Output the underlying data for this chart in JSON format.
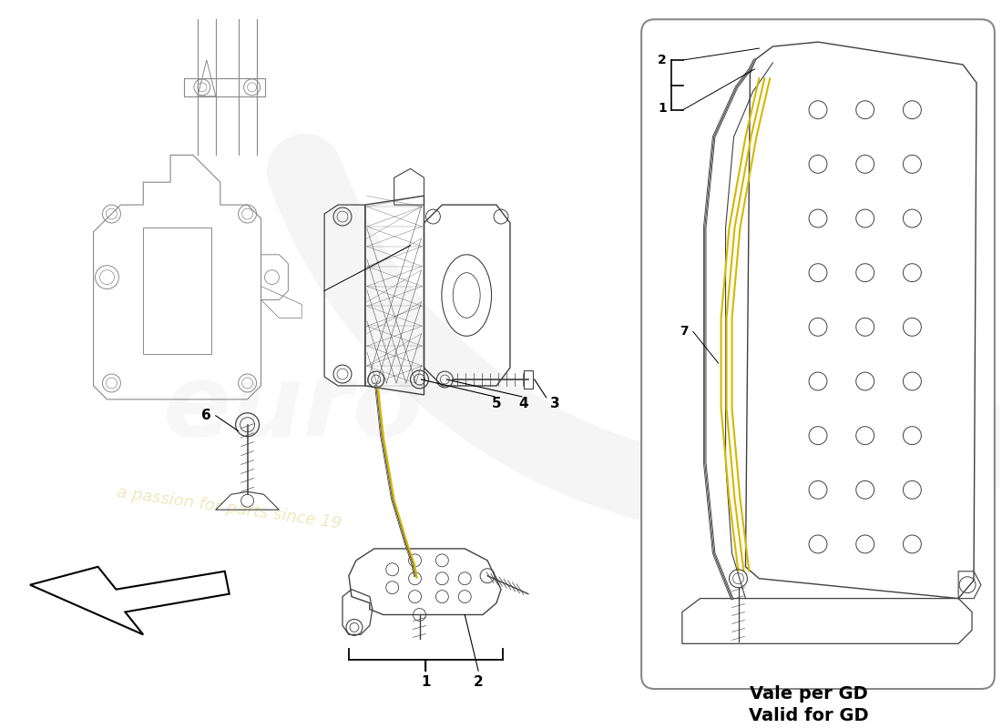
{
  "bg_color": "#ffffff",
  "line_color": "#404040",
  "light_line_color": "#888888",
  "yellow_color": "#d4b800",
  "label_color": "#000000",
  "watermark_color": "#e8dfa0",
  "text_valid_line1": "Vale per GD",
  "text_valid_line2": "Valid for GD",
  "text_valid_fontsize": 14,
  "label_fontsize": 11,
  "box_edge_color": "#888888",
  "box_facecolor": "#ffffff"
}
